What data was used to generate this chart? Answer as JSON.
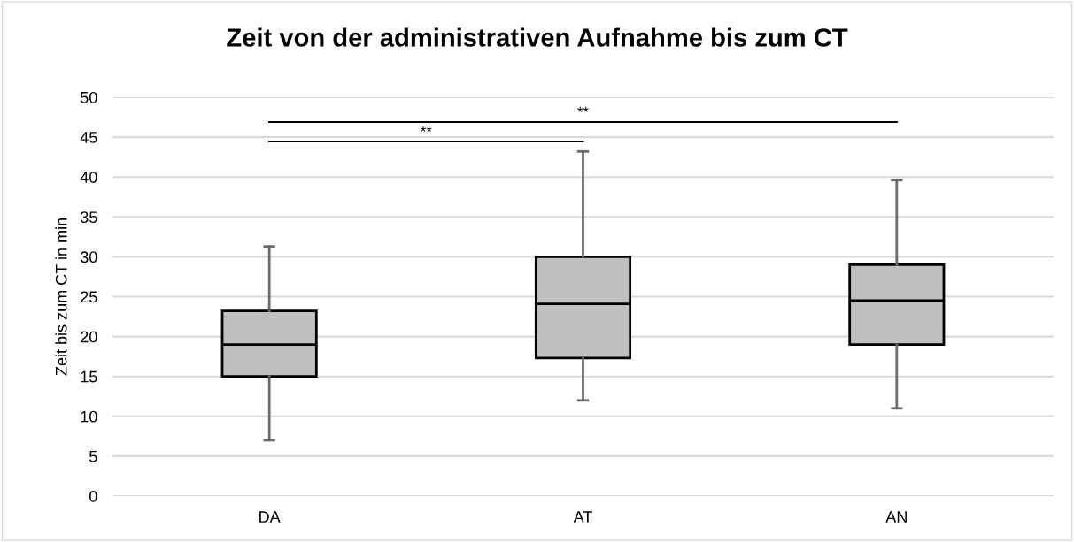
{
  "chart_data": {
    "type": "box",
    "title": "Zeit von der administrativen Aufnahme bis zum CT",
    "ylabel": "Zeit bis zum CT in min",
    "categories": [
      "DA",
      "AT",
      "AN"
    ],
    "boxes": [
      {
        "low": 7.0,
        "q1": 15.0,
        "median": 19.0,
        "q3": 23.2,
        "high": 31.3
      },
      {
        "low": 12.0,
        "q1": 17.3,
        "median": 24.1,
        "q3": 30.0,
        "high": 43.2
      },
      {
        "low": 11.0,
        "q1": 19.0,
        "median": 24.5,
        "q3": 29.0,
        "high": 39.6
      }
    ],
    "color": "#bfbfbf",
    "ylim": [
      0,
      50
    ],
    "yticks": [
      0,
      5,
      10,
      15,
      20,
      25,
      30,
      35,
      40,
      45,
      50
    ],
    "grid": "y",
    "annotations": [
      "**",
      "**"
    ]
  }
}
